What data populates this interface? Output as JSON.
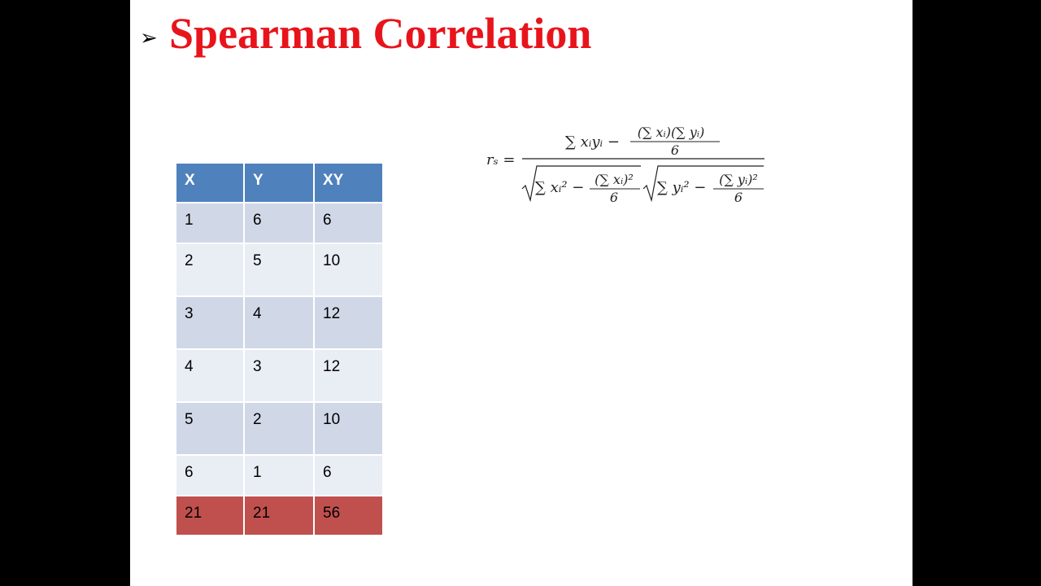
{
  "slide": {
    "title": "Spearman Correlation",
    "table": {
      "header": [
        "X",
        "Y",
        "XY"
      ],
      "rows": [
        [
          1,
          6,
          6
        ],
        [
          2,
          5,
          10
        ],
        [
          3,
          4,
          12
        ],
        [
          4,
          3,
          12
        ],
        [
          5,
          2,
          10
        ],
        [
          6,
          1,
          6
        ]
      ],
      "total": [
        21,
        21,
        56
      ]
    },
    "formula": {
      "lhs": "rₛ =",
      "numerator": "∑ xᵢyᵢ −",
      "numerator_top": "(∑ xᵢ)(∑ yᵢ)",
      "numerator_bottom": "6",
      "denominator_left": "∑ xᵢ² −",
      "denominator_left_top": "(∑ xᵢ)²",
      "denominator_left_bottom": "6",
      "denominator_right": "∑ yᵢ² −",
      "denominator_right_top": "(∑ yᵢ)²",
      "denominator_right_bottom": "6"
    }
  }
}
